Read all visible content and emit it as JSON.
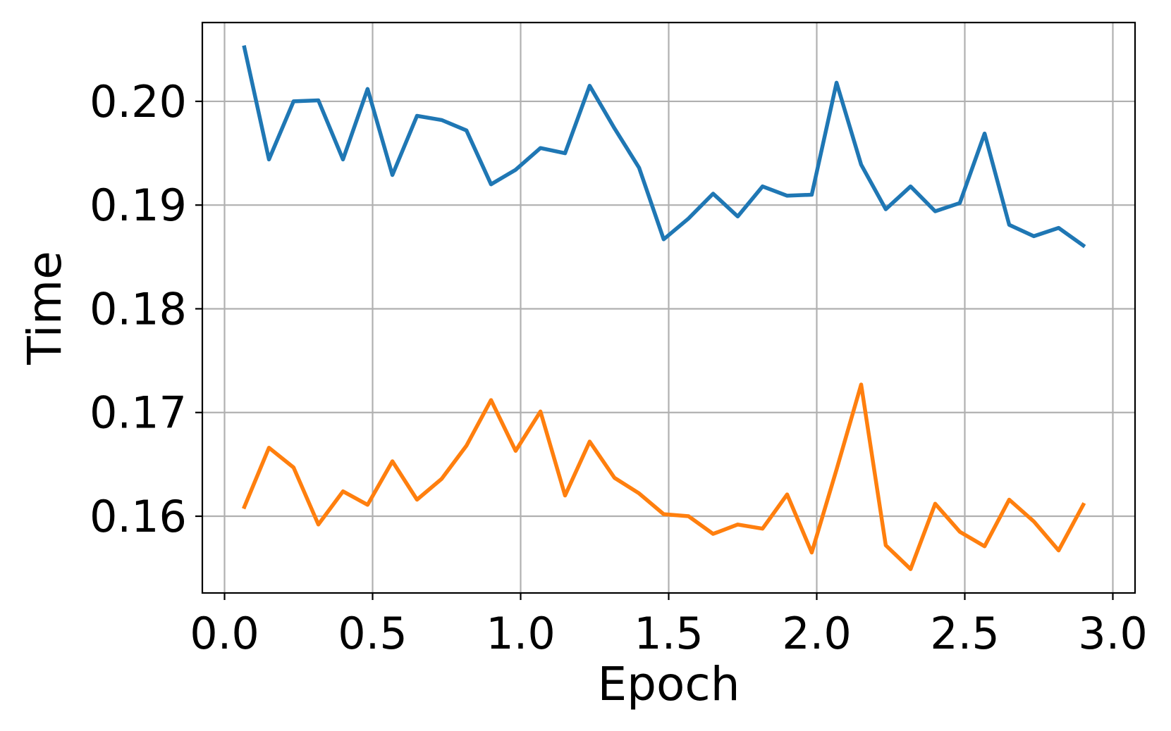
{
  "chart_data": {
    "type": "line",
    "title": "",
    "xlabel": "Epoch",
    "ylabel": "Time",
    "xlim": [
      -0.075,
      3.075
    ],
    "ylim": [
      0.1526,
      0.2076
    ],
    "xticks": [
      0.0,
      0.5,
      1.0,
      1.5,
      2.0,
      2.5,
      3.0
    ],
    "xtick_labels": [
      "0.0",
      "0.5",
      "1.0",
      "1.5",
      "2.0",
      "2.5",
      "3.0"
    ],
    "yticks": [
      0.16,
      0.17,
      0.18,
      0.19,
      0.2
    ],
    "ytick_labels": [
      "0.16",
      "0.17",
      "0.18",
      "0.19",
      "0.20"
    ],
    "grid": true,
    "legend": false,
    "x": [
      0.067,
      0.15,
      0.233,
      0.317,
      0.4,
      0.483,
      0.567,
      0.65,
      0.733,
      0.817,
      0.9,
      0.983,
      1.067,
      1.15,
      1.233,
      1.317,
      1.4,
      1.483,
      1.567,
      1.65,
      1.733,
      1.817,
      1.9,
      1.983,
      2.067,
      2.15,
      2.233,
      2.317,
      2.4,
      2.483,
      2.567,
      2.65,
      2.733,
      2.817,
      2.9
    ],
    "series": [
      {
        "color": "#1f77b4",
        "values": [
          0.2052,
          0.1944,
          0.2,
          0.2001,
          0.1944,
          0.2012,
          0.1929,
          0.1986,
          0.1982,
          0.1972,
          0.192,
          0.1934,
          0.1955,
          0.195,
          0.2015,
          0.1974,
          0.1936,
          0.1867,
          0.1887,
          0.1911,
          0.1889,
          0.1918,
          0.1909,
          0.191,
          0.2018,
          0.1939,
          0.1896,
          0.1918,
          0.1894,
          0.1902,
          0.1969,
          0.1881,
          0.187,
          0.1878,
          0.1861
        ]
      },
      {
        "color": "#ff7f0e",
        "values": [
          0.1609,
          0.1666,
          0.1647,
          0.1592,
          0.1624,
          0.1611,
          0.1653,
          0.1616,
          0.1636,
          0.1668,
          0.1712,
          0.1663,
          0.1701,
          0.162,
          0.1672,
          0.1637,
          0.1622,
          0.1602,
          0.16,
          0.1583,
          0.1592,
          0.1588,
          0.1621,
          0.1565,
          0.1645,
          0.1727,
          0.1572,
          0.1549,
          0.1612,
          0.1585,
          0.1571,
          0.1616,
          0.1595,
          0.1567,
          0.1611
        ]
      }
    ]
  }
}
